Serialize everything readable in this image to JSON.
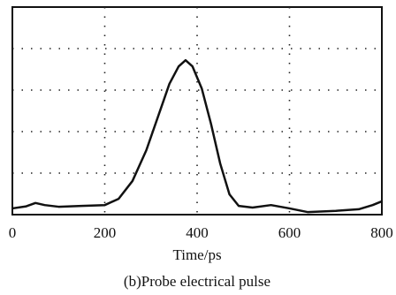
{
  "chart_data": {
    "type": "line",
    "xlabel": "Time/ps",
    "caption": "(b)Probe electrical pulse",
    "xlim": [
      0,
      800
    ],
    "xticks": [
      0,
      200,
      400,
      600,
      800
    ],
    "ylim": [
      0,
      5
    ],
    "yticks": [
      1,
      2,
      3,
      4
    ],
    "grid": true,
    "series": [
      {
        "color": "#111111",
        "x": [
          0,
          30,
          50,
          70,
          100,
          150,
          200,
          230,
          260,
          290,
          320,
          340,
          360,
          375,
          390,
          410,
          430,
          450,
          470,
          490,
          520,
          560,
          600,
          640,
          700,
          750,
          780,
          800
        ],
        "values": [
          0.15,
          0.2,
          0.28,
          0.23,
          0.19,
          0.21,
          0.23,
          0.38,
          0.81,
          1.55,
          2.51,
          3.15,
          3.57,
          3.72,
          3.57,
          3.04,
          2.19,
          1.23,
          0.49,
          0.21,
          0.17,
          0.23,
          0.15,
          0.06,
          0.09,
          0.13,
          0.23,
          0.32
        ]
      }
    ]
  }
}
